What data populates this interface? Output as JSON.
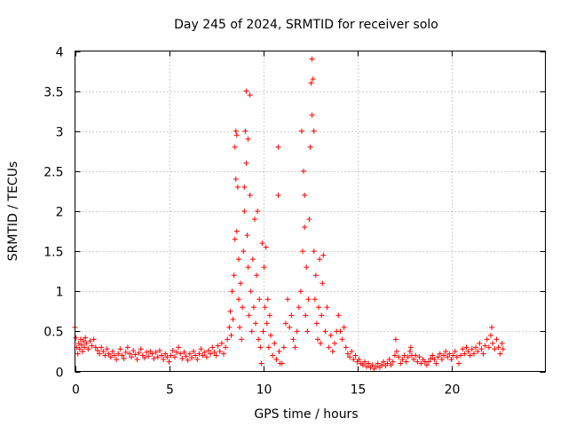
{
  "chart_data": {
    "type": "scatter",
    "title": "Day 245 of 2024, SRMTID for receiver solo",
    "xlabel": "GPS time / hours",
    "ylabel": "SRMTID / TECUs",
    "xlim": [
      0,
      25
    ],
    "ylim": [
      0,
      4
    ],
    "xticks": [
      0,
      5,
      10,
      15,
      20
    ],
    "yticks": [
      0,
      0.5,
      1,
      1.5,
      2,
      2.5,
      3,
      3.5,
      4
    ],
    "xtick_labels": [
      "0",
      "5",
      "10",
      "15",
      "20"
    ],
    "ytick_labels": [
      "0",
      "0.5",
      "1",
      "1.5",
      "2",
      "2.5",
      "3",
      "3.5",
      "4"
    ],
    "grid": true,
    "marker": "+",
    "color": "#ff0000",
    "series": [
      {
        "name": "SRMTID",
        "points": [
          [
            0.0,
            0.55
          ],
          [
            0.05,
            0.42
          ],
          [
            0.1,
            0.3
          ],
          [
            0.15,
            0.22
          ],
          [
            0.2,
            0.35
          ],
          [
            0.25,
            0.28
          ],
          [
            0.3,
            0.4
          ],
          [
            0.35,
            0.33
          ],
          [
            0.4,
            0.25
          ],
          [
            0.45,
            0.38
          ],
          [
            0.5,
            0.3
          ],
          [
            0.55,
            0.42
          ],
          [
            0.6,
            0.35
          ],
          [
            0.7,
            0.28
          ],
          [
            0.8,
            0.38
          ],
          [
            0.9,
            0.32
          ],
          [
            1.0,
            0.4
          ],
          [
            1.1,
            0.3
          ],
          [
            1.2,
            0.26
          ],
          [
            1.3,
            0.22
          ],
          [
            1.4,
            0.3
          ],
          [
            1.5,
            0.25
          ],
          [
            1.6,
            0.2
          ],
          [
            1.7,
            0.28
          ],
          [
            1.8,
            0.22
          ],
          [
            1.9,
            0.18
          ],
          [
            2.0,
            0.25
          ],
          [
            2.1,
            0.2
          ],
          [
            2.2,
            0.15
          ],
          [
            2.3,
            0.22
          ],
          [
            2.4,
            0.28
          ],
          [
            2.5,
            0.2
          ],
          [
            2.6,
            0.16
          ],
          [
            2.7,
            0.24
          ],
          [
            2.8,
            0.3
          ],
          [
            2.9,
            0.22
          ],
          [
            3.0,
            0.18
          ],
          [
            3.1,
            0.26
          ],
          [
            3.2,
            0.21
          ],
          [
            3.3,
            0.15
          ],
          [
            3.4,
            0.23
          ],
          [
            3.5,
            0.28
          ],
          [
            3.6,
            0.2
          ],
          [
            3.7,
            0.17
          ],
          [
            3.8,
            0.24
          ],
          [
            3.9,
            0.19
          ],
          [
            4.0,
            0.25
          ],
          [
            4.1,
            0.22
          ],
          [
            4.2,
            0.16
          ],
          [
            4.3,
            0.24
          ],
          [
            4.4,
            0.18
          ],
          [
            4.5,
            0.26
          ],
          [
            4.6,
            0.2
          ],
          [
            4.7,
            0.15
          ],
          [
            4.8,
            0.22
          ],
          [
            4.9,
            0.18
          ],
          [
            5.0,
            0.12
          ],
          [
            5.1,
            0.2
          ],
          [
            5.2,
            0.26
          ],
          [
            5.3,
            0.18
          ],
          [
            5.4,
            0.24
          ],
          [
            5.5,
            0.3
          ],
          [
            5.6,
            0.22
          ],
          [
            5.7,
            0.16
          ],
          [
            5.8,
            0.24
          ],
          [
            5.9,
            0.19
          ],
          [
            6.0,
            0.14
          ],
          [
            6.1,
            0.22
          ],
          [
            6.2,
            0.17
          ],
          [
            6.3,
            0.25
          ],
          [
            6.4,
            0.2
          ],
          [
            6.5,
            0.15
          ],
          [
            6.6,
            0.22
          ],
          [
            6.7,
            0.28
          ],
          [
            6.8,
            0.2
          ],
          [
            6.9,
            0.24
          ],
          [
            7.0,
            0.18
          ],
          [
            7.1,
            0.26
          ],
          [
            7.2,
            0.22
          ],
          [
            7.3,
            0.3
          ],
          [
            7.4,
            0.24
          ],
          [
            7.5,
            0.2
          ],
          [
            7.6,
            0.32
          ],
          [
            7.7,
            0.25
          ],
          [
            7.8,
            0.35
          ],
          [
            7.9,
            0.22
          ],
          [
            8.0,
            0.3
          ],
          [
            8.1,
            0.4
          ],
          [
            8.2,
            0.55
          ],
          [
            8.25,
            0.75
          ],
          [
            8.3,
            0.45
          ],
          [
            8.35,
            1.0
          ],
          [
            8.4,
            0.65
          ],
          [
            8.45,
            1.2
          ],
          [
            8.5,
            1.65
          ],
          [
            8.5,
            2.8
          ],
          [
            8.55,
            3.0
          ],
          [
            8.55,
            2.4
          ],
          [
            8.6,
            2.95
          ],
          [
            8.6,
            1.75
          ],
          [
            8.65,
            2.3
          ],
          [
            8.7,
            1.4
          ],
          [
            8.7,
            0.9
          ],
          [
            8.75,
            0.55
          ],
          [
            8.8,
            1.1
          ],
          [
            8.85,
            0.4
          ],
          [
            8.9,
            0.8
          ],
          [
            8.95,
            1.5
          ],
          [
            9.0,
            2.3
          ],
          [
            9.0,
            2.0
          ],
          [
            9.05,
            3.0
          ],
          [
            9.1,
            3.5
          ],
          [
            9.1,
            2.6
          ],
          [
            9.15,
            1.7
          ],
          [
            9.2,
            2.9
          ],
          [
            9.2,
            1.3
          ],
          [
            9.25,
            0.7
          ],
          [
            9.3,
            3.45
          ],
          [
            9.3,
            2.2
          ],
          [
            9.35,
            1.0
          ],
          [
            9.4,
            0.5
          ],
          [
            9.45,
            1.4
          ],
          [
            9.5,
            0.8
          ],
          [
            9.55,
            1.9
          ],
          [
            9.6,
            0.6
          ],
          [
            9.65,
            1.2
          ],
          [
            9.7,
            2.0
          ],
          [
            9.75,
            0.4
          ],
          [
            9.8,
            0.9
          ],
          [
            9.85,
            0.3
          ],
          [
            9.9,
            0.1
          ],
          [
            9.95,
            1.6
          ],
          [
            10.0,
            0.5
          ],
          [
            10.05,
            1.3
          ],
          [
            10.1,
            0.8
          ],
          [
            10.15,
            1.55
          ],
          [
            10.2,
            0.6
          ],
          [
            10.25,
            0.9
          ],
          [
            10.3,
            0.3
          ],
          [
            10.35,
            0.7
          ],
          [
            10.4,
            0.45
          ],
          [
            10.5,
            0.2
          ],
          [
            10.6,
            0.35
          ],
          [
            10.7,
            0.15
          ],
          [
            10.8,
            2.8
          ],
          [
            10.8,
            2.2
          ],
          [
            10.85,
            0.25
          ],
          [
            10.9,
            0.1
          ],
          [
            11.0,
            0.1
          ],
          [
            11.1,
            0.3
          ],
          [
            11.2,
            0.6
          ],
          [
            11.3,
            0.9
          ],
          [
            11.4,
            0.55
          ],
          [
            11.5,
            0.7
          ],
          [
            11.6,
            0.4
          ],
          [
            11.7,
            0.3
          ],
          [
            11.8,
            0.5
          ],
          [
            11.9,
            0.8
          ],
          [
            12.0,
            1.0
          ],
          [
            12.05,
            3.0
          ],
          [
            12.1,
            1.5
          ],
          [
            12.15,
            2.5
          ],
          [
            12.2,
            1.8
          ],
          [
            12.2,
            2.2
          ],
          [
            12.25,
            0.7
          ],
          [
            12.3,
            1.3
          ],
          [
            12.35,
            0.5
          ],
          [
            12.4,
            0.9
          ],
          [
            12.45,
            1.9
          ],
          [
            12.5,
            2.8
          ],
          [
            12.55,
            3.6
          ],
          [
            12.6,
            3.9
          ],
          [
            12.6,
            3.2
          ],
          [
            12.65,
            3.65
          ],
          [
            12.7,
            1.5
          ],
          [
            12.7,
            3.0
          ],
          [
            12.75,
            0.9
          ],
          [
            12.8,
            1.2
          ],
          [
            12.85,
            0.6
          ],
          [
            12.9,
            0.4
          ],
          [
            12.95,
            0.8
          ],
          [
            13.0,
            1.4
          ],
          [
            13.05,
            0.35
          ],
          [
            13.1,
            0.7
          ],
          [
            13.15,
            1.1
          ],
          [
            13.2,
            1.45
          ],
          [
            13.3,
            0.5
          ],
          [
            13.4,
            0.8
          ],
          [
            13.5,
            0.3
          ],
          [
            13.6,
            0.45
          ],
          [
            13.7,
            0.25
          ],
          [
            13.8,
            0.35
          ],
          [
            13.9,
            0.5
          ],
          [
            14.0,
            0.7
          ],
          [
            14.1,
            0.5
          ],
          [
            14.2,
            0.4
          ],
          [
            14.3,
            0.55
          ],
          [
            14.4,
            0.3
          ],
          [
            14.5,
            0.22
          ],
          [
            14.6,
            0.18
          ],
          [
            14.7,
            0.25
          ],
          [
            14.8,
            0.15
          ],
          [
            14.9,
            0.2
          ],
          [
            15.0,
            0.12
          ],
          [
            15.1,
            0.15
          ],
          [
            15.2,
            0.1
          ],
          [
            15.3,
            0.08
          ],
          [
            15.4,
            0.12
          ],
          [
            15.5,
            0.06
          ],
          [
            15.6,
            0.1
          ],
          [
            15.7,
            0.05
          ],
          [
            15.8,
            0.08
          ],
          [
            15.9,
            0.03
          ],
          [
            16.0,
            0.06
          ],
          [
            16.1,
            0.1
          ],
          [
            16.2,
            0.05
          ],
          [
            16.3,
            0.08
          ],
          [
            16.4,
            0.12
          ],
          [
            16.5,
            0.07
          ],
          [
            16.6,
            0.1
          ],
          [
            16.7,
            0.15
          ],
          [
            16.8,
            0.08
          ],
          [
            16.9,
            0.12
          ],
          [
            17.0,
            0.2
          ],
          [
            17.05,
            0.4
          ],
          [
            17.1,
            0.25
          ],
          [
            17.2,
            0.18
          ],
          [
            17.3,
            0.1
          ],
          [
            17.4,
            0.15
          ],
          [
            17.5,
            0.2
          ],
          [
            17.6,
            0.12
          ],
          [
            17.7,
            0.18
          ],
          [
            17.8,
            0.25
          ],
          [
            17.85,
            0.3
          ],
          [
            17.9,
            0.2
          ],
          [
            18.0,
            0.15
          ],
          [
            18.1,
            0.2
          ],
          [
            18.2,
            0.12
          ],
          [
            18.3,
            0.18
          ],
          [
            18.4,
            0.1
          ],
          [
            18.5,
            0.15
          ],
          [
            18.6,
            0.12
          ],
          [
            18.7,
            0.08
          ],
          [
            18.8,
            0.12
          ],
          [
            18.9,
            0.16
          ],
          [
            19.0,
            0.2
          ],
          [
            19.1,
            0.15
          ],
          [
            19.2,
            0.1
          ],
          [
            19.3,
            0.18
          ],
          [
            19.4,
            0.22
          ],
          [
            19.5,
            0.15
          ],
          [
            19.6,
            0.2
          ],
          [
            19.7,
            0.25
          ],
          [
            19.8,
            0.18
          ],
          [
            19.9,
            0.22
          ],
          [
            20.0,
            0.15
          ],
          [
            20.1,
            0.2
          ],
          [
            20.2,
            0.25
          ],
          [
            20.3,
            0.18
          ],
          [
            20.4,
            0.1
          ],
          [
            20.5,
            0.2
          ],
          [
            20.6,
            0.28
          ],
          [
            20.7,
            0.22
          ],
          [
            20.8,
            0.3
          ],
          [
            20.9,
            0.25
          ],
          [
            21.0,
            0.2
          ],
          [
            21.1,
            0.28
          ],
          [
            21.2,
            0.22
          ],
          [
            21.3,
            0.3
          ],
          [
            21.4,
            0.25
          ],
          [
            21.5,
            0.35
          ],
          [
            21.6,
            0.28
          ],
          [
            21.7,
            0.22
          ],
          [
            21.8,
            0.32
          ],
          [
            21.9,
            0.4
          ],
          [
            22.0,
            0.3
          ],
          [
            22.1,
            0.45
          ],
          [
            22.15,
            0.55
          ],
          [
            22.2,
            0.35
          ],
          [
            22.3,
            0.28
          ],
          [
            22.4,
            0.4
          ],
          [
            22.5,
            0.3
          ],
          [
            22.6,
            0.22
          ],
          [
            22.7,
            0.35
          ],
          [
            22.75,
            0.28
          ]
        ]
      }
    ]
  }
}
